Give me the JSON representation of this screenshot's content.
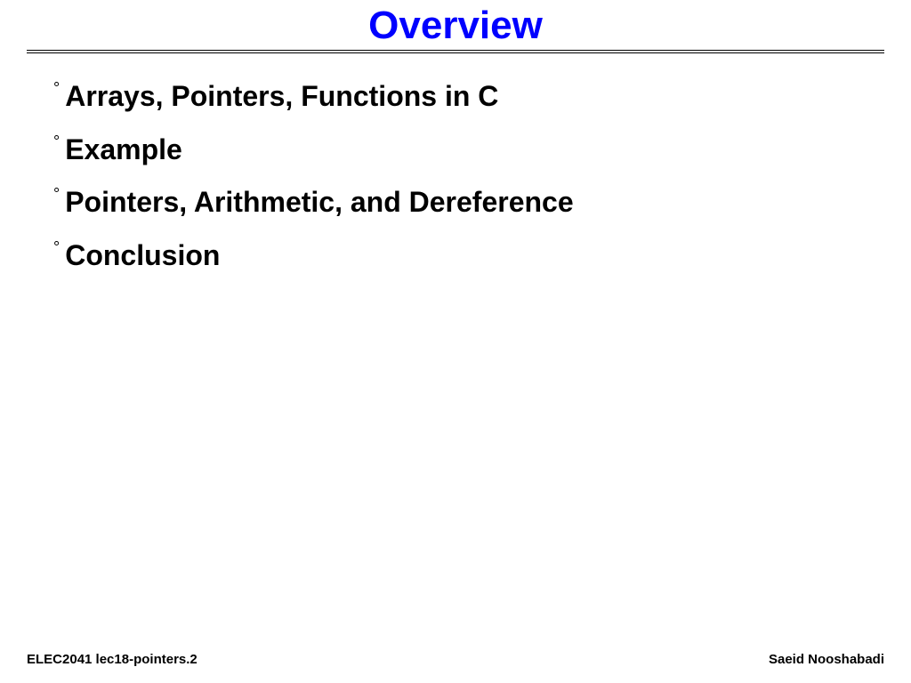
{
  "title": {
    "text": "Overview",
    "color": "#0000ff",
    "fontsize": 44
  },
  "bullets": {
    "items": [
      {
        "text": "Arrays, Pointers, Functions in C"
      },
      {
        "text": "Example"
      },
      {
        "text": "Pointers, Arithmetic, and Dereference"
      },
      {
        "text": "Conclusion"
      }
    ],
    "marker": "°",
    "color": "#000000",
    "fontsize": 32
  },
  "footer": {
    "left": "ELEC2041  lec18-pointers.2",
    "right": "Saeid Nooshabadi",
    "color": "#000000",
    "fontsize": 15
  },
  "background_color": "#ffffff",
  "rule_color": "#000000"
}
